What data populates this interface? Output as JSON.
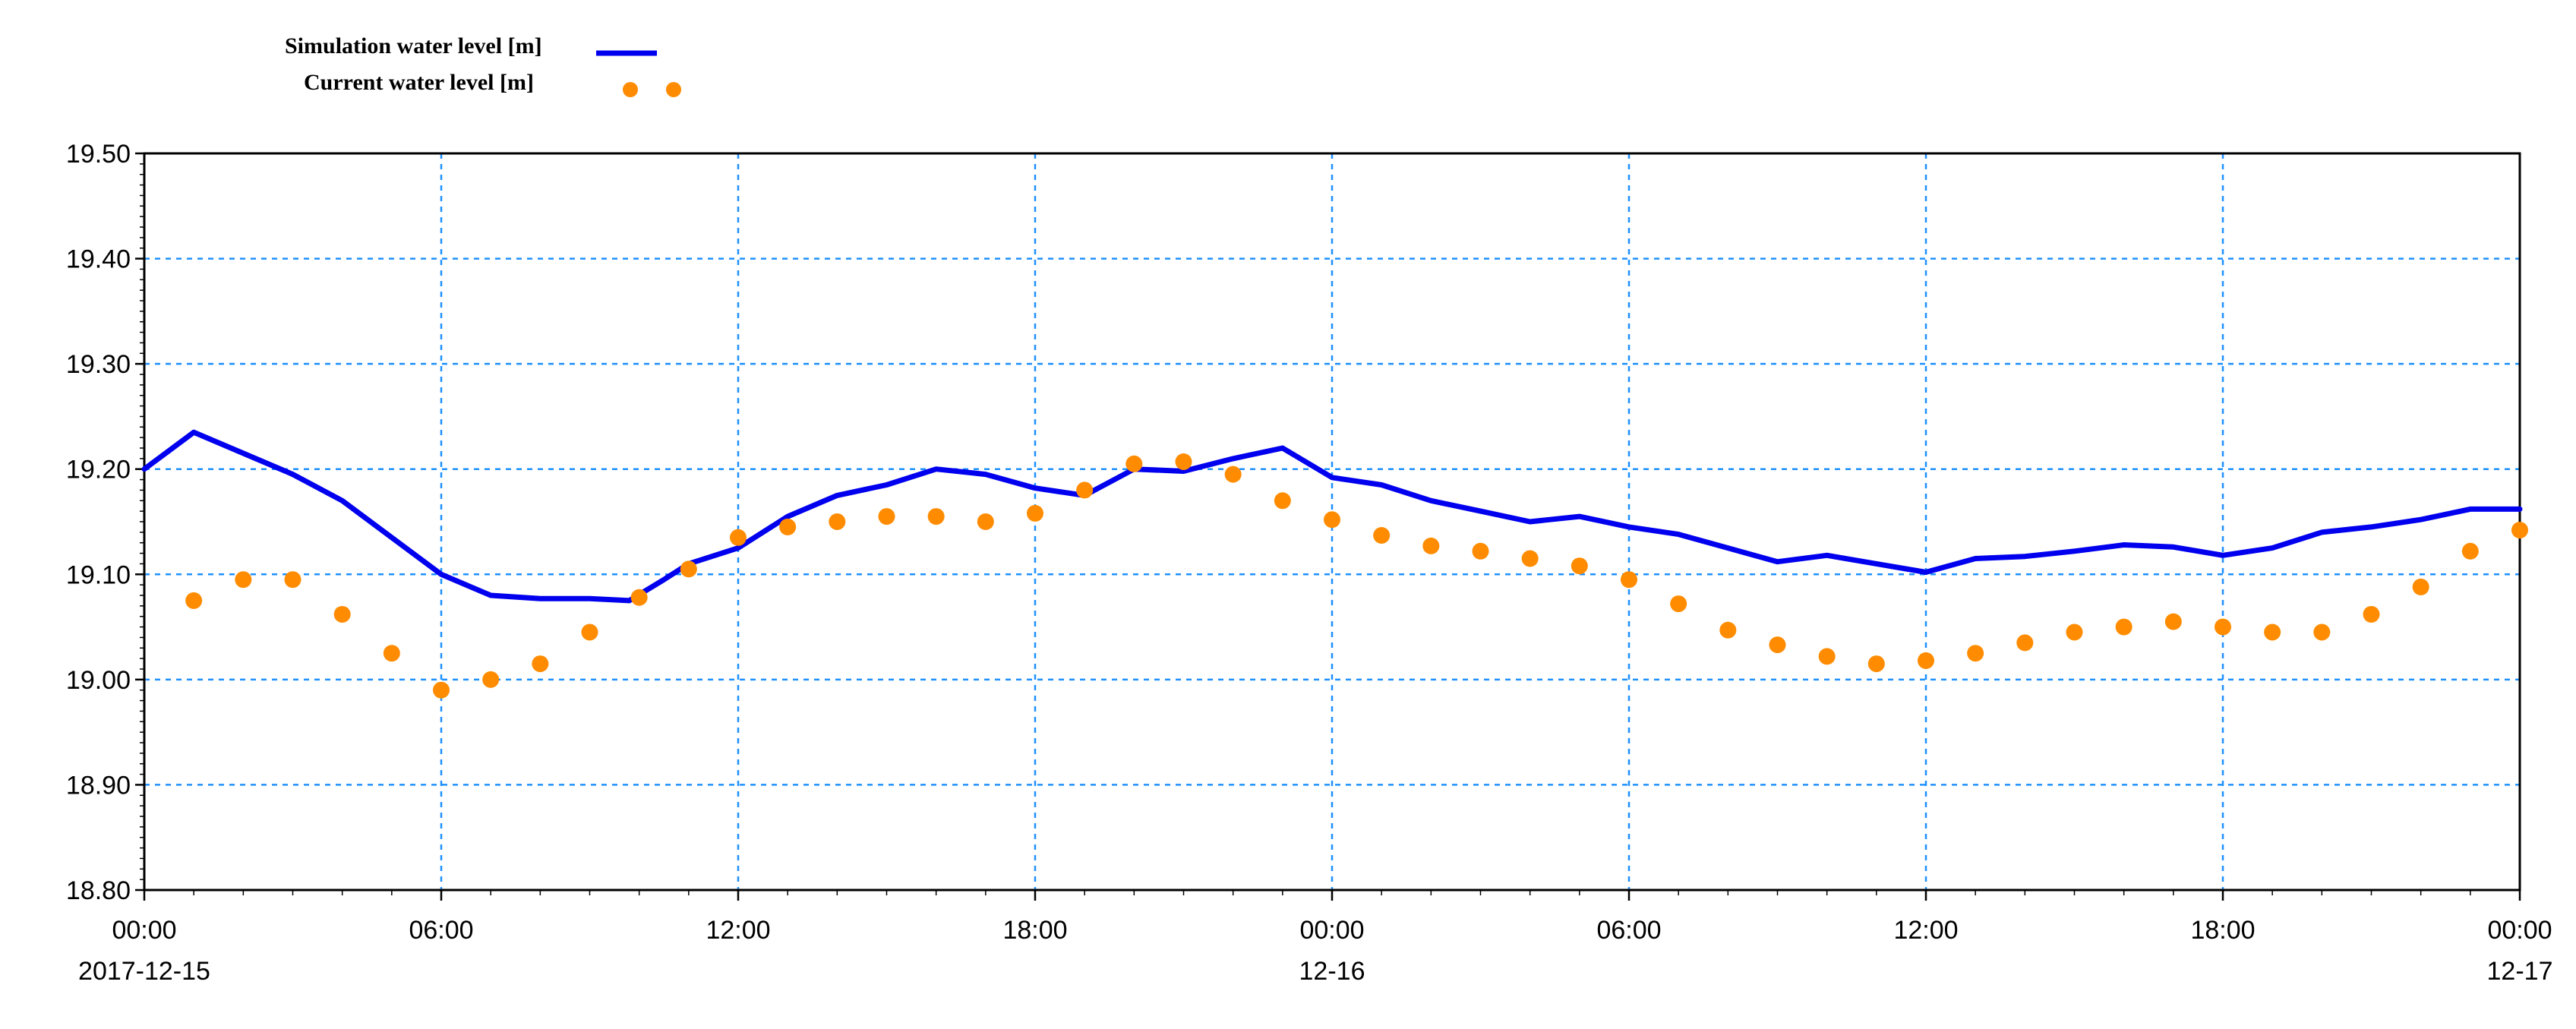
{
  "chart_data": {
    "type": "line",
    "title": "",
    "xlabel": "",
    "ylabel": "",
    "ylim": [
      18.8,
      19.5
    ],
    "y_ticks": [
      "18.80",
      "18.90",
      "19.00",
      "19.10",
      "19.20",
      "19.30",
      "19.40",
      "19.50"
    ],
    "x_range_hours": [
      0,
      48
    ],
    "x_ticks": [
      {
        "hour": 0,
        "time": "00:00",
        "date": "2017-12-15"
      },
      {
        "hour": 6,
        "time": "06:00",
        "date": ""
      },
      {
        "hour": 12,
        "time": "12:00",
        "date": ""
      },
      {
        "hour": 18,
        "time": "18:00",
        "date": ""
      },
      {
        "hour": 24,
        "time": "00:00",
        "date": "12-16"
      },
      {
        "hour": 30,
        "time": "06:00",
        "date": ""
      },
      {
        "hour": 36,
        "time": "12:00",
        "date": ""
      },
      {
        "hour": 42,
        "time": "18:00",
        "date": ""
      },
      {
        "hour": 48,
        "time": "00:00",
        "date": "12-17"
      }
    ],
    "grid": true,
    "legend_position": "top-left",
    "series": [
      {
        "name": "Simulation water level [m]",
        "style": "line",
        "color": "#0000ee",
        "x": [
          0,
          1,
          2,
          3,
          4,
          5,
          6,
          7,
          8,
          9,
          9.8,
          10.5,
          11,
          12,
          13,
          14,
          15,
          16,
          17,
          18,
          19,
          20,
          21,
          22,
          23,
          24,
          25,
          26,
          27,
          28,
          29,
          30,
          31,
          32,
          33,
          34,
          35,
          36,
          37,
          38,
          39,
          40,
          41,
          42,
          43,
          44,
          45,
          46,
          47,
          48
        ],
        "y": [
          19.2,
          19.235,
          19.215,
          19.195,
          19.17,
          19.135,
          19.1,
          19.08,
          19.077,
          19.077,
          19.075,
          19.095,
          19.11,
          19.125,
          19.155,
          19.175,
          19.185,
          19.2,
          19.195,
          19.182,
          19.175,
          19.2,
          19.198,
          19.21,
          19.22,
          19.192,
          19.185,
          19.17,
          19.16,
          19.15,
          19.155,
          19.145,
          19.138,
          19.125,
          19.112,
          19.118,
          19.11,
          19.102,
          19.115,
          19.117,
          19.122,
          19.128,
          19.126,
          19.118,
          19.125,
          19.14,
          19.145,
          19.152,
          19.162,
          19.162
        ]
      },
      {
        "name": "Current water level  [m]",
        "style": "scatter",
        "color": "#ff8c00",
        "x": [
          1,
          2,
          3,
          4,
          5,
          6,
          7,
          8,
          9,
          10,
          11,
          12,
          13,
          14,
          15,
          16,
          17,
          18,
          19,
          20,
          21,
          22,
          23,
          24,
          25,
          26,
          27,
          28,
          29,
          30,
          31,
          32,
          33,
          34,
          35,
          36,
          37,
          38,
          39,
          40,
          41,
          42,
          43,
          44,
          45,
          46,
          47,
          48
        ],
        "y": [
          19.075,
          19.095,
          19.095,
          19.062,
          19.025,
          18.99,
          19.0,
          19.015,
          19.045,
          19.078,
          19.105,
          19.135,
          19.145,
          19.15,
          19.155,
          19.155,
          19.15,
          19.158,
          19.18,
          19.205,
          19.207,
          19.195,
          19.17,
          19.152,
          19.137,
          19.127,
          19.122,
          19.115,
          19.108,
          19.095,
          19.072,
          19.047,
          19.033,
          19.022,
          19.015,
          19.018,
          19.025,
          19.035,
          19.045,
          19.05,
          19.055,
          19.05,
          19.045,
          19.045,
          19.062,
          19.088,
          19.122,
          19.142
        ]
      }
    ]
  }
}
